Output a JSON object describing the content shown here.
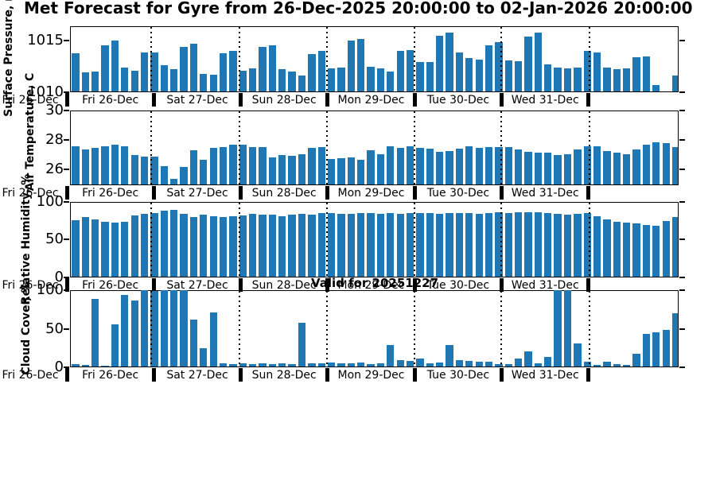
{
  "title": "Met Forecast for Gyre from 26-Dec-2025 20:00:00 to 02-Jan-2026 20:00:00",
  "valid_label": "Valid for 20251227",
  "bar_color": "#1f77b4",
  "x_axis": {
    "edge_label": "Fri 26-Dec",
    "day_labels": [
      "Fri 26-Dec",
      "Sat 27-Dec",
      "Sun 28-Dec",
      "Mon 29-Dec",
      "Tue 30-Dec",
      "Wed 31-Dec"
    ]
  },
  "chart_data": [
    {
      "id": "pressure",
      "type": "bar",
      "ylabel": "Surface Pressure, mb",
      "ytick_labels": [
        "1015",
        "1010"
      ],
      "yticks": [
        1015,
        1010
      ],
      "ylim": [
        1010,
        1016.4
      ],
      "grid": "vertical-dotted-at-day-boundaries",
      "values": [
        1013.7,
        1011.8,
        1011.9,
        1014.5,
        1014.9,
        1012.3,
        1012.0,
        1013.8,
        1013.8,
        1012.5,
        1012.1,
        1014.3,
        1014.6,
        1011.7,
        1011.6,
        1013.7,
        1013.9,
        1012.0,
        1012.2,
        1014.3,
        1014.5,
        1012.1,
        1011.9,
        1011.5,
        1013.6,
        1013.9,
        1012.2,
        1012.3,
        1014.9,
        1015.1,
        1012.4,
        1012.2,
        1011.9,
        1013.9,
        1014.0,
        1012.8,
        1012.8,
        1015.4,
        1015.7,
        1013.8,
        1013.2,
        1013.1,
        1014.5,
        1014.8,
        1013.0,
        1012.9,
        1015.3,
        1015.7,
        1012.6,
        1012.3,
        1012.2,
        1012.3,
        1013.9,
        1013.8,
        1012.3,
        1012.1,
        1012.2,
        1013.3,
        1013.4,
        1010.6,
        null,
        1011.5
      ]
    },
    {
      "id": "temperature",
      "type": "bar",
      "ylabel": "Air Temperature, C",
      "ytick_labels": [
        "30",
        "28",
        "26"
      ],
      "yticks": [
        30,
        28,
        26
      ],
      "ylim": [
        24.92,
        30
      ],
      "grid": "vertical-dotted-at-day-boundaries",
      "values": [
        27.55,
        27.3,
        27.4,
        27.55,
        27.65,
        27.55,
        26.95,
        26.85,
        26.85,
        26.2,
        25.3,
        26.1,
        27.25,
        26.6,
        27.4,
        27.5,
        27.65,
        27.65,
        27.5,
        27.45,
        26.75,
        26.95,
        26.9,
        27.0,
        27.4,
        27.5,
        26.65,
        26.7,
        26.8,
        26.6,
        27.25,
        27.0,
        27.55,
        27.4,
        27.55,
        27.4,
        27.35,
        27.15,
        27.2,
        27.35,
        27.55,
        27.4,
        27.45,
        27.5,
        27.5,
        27.3,
        27.15,
        27.1,
        27.1,
        26.95,
        27.0,
        27.3,
        27.55,
        27.55,
        27.2,
        27.1,
        27.0,
        27.3,
        27.65,
        27.8,
        27.75,
        27.5
      ]
    },
    {
      "id": "humidity",
      "type": "bar",
      "ylabel": "Relative Humidity, %",
      "ytick_labels": [
        "100",
        "50",
        "0"
      ],
      "yticks": [
        100,
        50,
        0
      ],
      "ylim": [
        0,
        100
      ],
      "grid": "vertical-dotted-at-day-boundaries",
      "values": [
        74,
        79,
        75,
        72,
        71,
        72,
        81,
        83,
        84,
        87,
        88,
        83,
        79,
        82,
        80,
        79,
        80,
        81,
        83,
        82,
        82,
        80,
        82,
        83,
        82,
        84,
        84,
        83,
        83,
        84,
        84,
        83,
        84,
        83,
        84,
        84,
        84,
        83,
        84,
        84,
        84,
        83,
        84,
        85,
        84,
        85,
        85,
        85,
        84,
        83,
        82,
        83,
        84,
        80,
        76,
        72,
        71,
        70,
        68,
        67,
        73,
        79
      ]
    },
    {
      "id": "cloud",
      "type": "bar",
      "title": "Valid for 20251227",
      "ylabel": "Cloud Cover, %",
      "ytick_labels": [
        "100",
        "50",
        "0"
      ],
      "yticks": [
        100,
        50,
        0
      ],
      "ylim": [
        0,
        100
      ],
      "grid": "vertical-dotted-at-day-boundaries",
      "values": [
        3,
        2,
        88,
        1,
        55,
        93,
        86,
        100,
        98,
        100,
        100,
        100,
        61,
        24,
        70,
        4,
        3,
        4,
        3,
        4,
        3,
        4,
        3,
        57,
        4,
        4,
        5,
        4,
        4,
        5,
        3,
        4,
        28,
        9,
        8,
        11,
        4,
        5,
        28,
        9,
        8,
        6,
        7,
        3,
        3,
        11,
        20,
        4,
        13,
        100,
        100,
        30,
        7,
        2,
        6,
        3,
        2,
        17,
        42,
        45,
        48,
        69
      ]
    }
  ]
}
